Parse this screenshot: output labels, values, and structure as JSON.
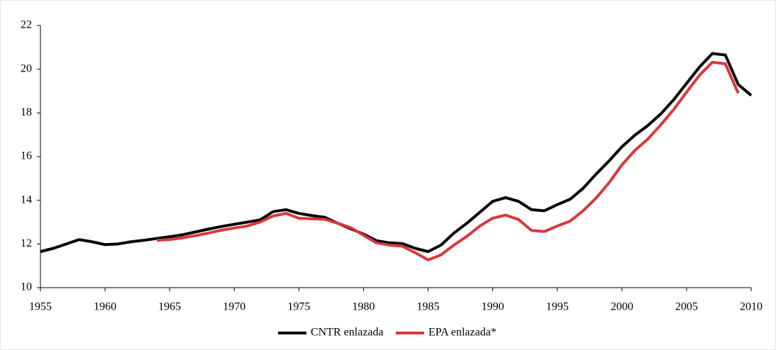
{
  "chart_data": {
    "type": "line",
    "x": [
      1955,
      1956,
      1957,
      1958,
      1959,
      1960,
      1961,
      1962,
      1963,
      1964,
      1965,
      1966,
      1967,
      1968,
      1969,
      1970,
      1971,
      1972,
      1973,
      1974,
      1975,
      1976,
      1977,
      1978,
      1979,
      1980,
      1981,
      1982,
      1983,
      1984,
      1985,
      1986,
      1987,
      1988,
      1989,
      1990,
      1991,
      1992,
      1993,
      1994,
      1995,
      1996,
      1997,
      1998,
      1999,
      2000,
      2001,
      2002,
      2003,
      2004,
      2005,
      2006,
      2007,
      2008,
      2009,
      2010
    ],
    "series": [
      {
        "name": "CNTR enlazada",
        "color": "#000000",
        "values": [
          11.65,
          11.8,
          12.0,
          12.2,
          12.1,
          11.97,
          12.0,
          12.1,
          12.17,
          12.25,
          12.33,
          12.42,
          12.55,
          12.68,
          12.8,
          12.9,
          13.0,
          13.1,
          13.48,
          13.57,
          13.4,
          13.3,
          13.22,
          12.95,
          12.7,
          12.45,
          12.15,
          12.05,
          12.02,
          11.8,
          11.65,
          11.95,
          12.5,
          12.95,
          13.45,
          13.95,
          14.12,
          13.95,
          13.57,
          13.52,
          13.8,
          14.05,
          14.55,
          15.2,
          15.8,
          16.45,
          16.98,
          17.42,
          17.95,
          18.6,
          19.35,
          20.1,
          20.72,
          20.65,
          19.3,
          18.8
        ]
      },
      {
        "name": "EPA enlazada*",
        "color": "#d9383e",
        "values": [
          null,
          null,
          null,
          null,
          null,
          null,
          null,
          null,
          null,
          12.17,
          12.2,
          12.28,
          12.38,
          12.5,
          12.63,
          12.73,
          12.82,
          13.0,
          13.28,
          13.4,
          13.18,
          13.15,
          13.13,
          12.95,
          12.75,
          12.4,
          12.05,
          11.95,
          11.9,
          11.6,
          11.27,
          11.5,
          11.95,
          12.35,
          12.82,
          13.18,
          13.32,
          13.12,
          12.62,
          12.57,
          12.82,
          13.05,
          13.52,
          14.1,
          14.8,
          15.62,
          16.28,
          16.8,
          17.45,
          18.15,
          18.95,
          19.72,
          20.32,
          20.25,
          18.9,
          null
        ]
      }
    ],
    "xlim": [
      1955,
      2010
    ],
    "xticks": [
      1955,
      1960,
      1965,
      1970,
      1975,
      1980,
      1985,
      1990,
      1995,
      2000,
      2005,
      2010
    ],
    "ylim": [
      10,
      22
    ],
    "yticks": [
      10,
      12,
      14,
      16,
      18,
      20,
      22
    ],
    "legend": "bottom"
  }
}
